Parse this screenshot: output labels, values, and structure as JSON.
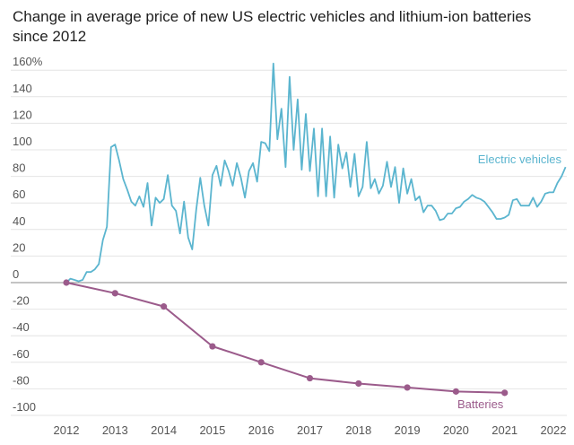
{
  "chart_data": {
    "type": "line",
    "title": "Change in average price of new US electric vehicles and lithium-ion batteries since 2012",
    "xlabel": "",
    "ylabel": "",
    "xlim": [
      2011.75,
      2022.3
    ],
    "ylim": [
      -100,
      165
    ],
    "y_ticks": [
      {
        "value": 160,
        "label": "160%"
      },
      {
        "value": 140,
        "label": "140"
      },
      {
        "value": 120,
        "label": "120"
      },
      {
        "value": 100,
        "label": "100"
      },
      {
        "value": 80,
        "label": "80"
      },
      {
        "value": 60,
        "label": "60"
      },
      {
        "value": 40,
        "label": "40"
      },
      {
        "value": 20,
        "label": "20"
      },
      {
        "value": 0,
        "label": "0"
      },
      {
        "value": -20,
        "label": "-20"
      },
      {
        "value": -40,
        "label": "-40"
      },
      {
        "value": -60,
        "label": "-60"
      },
      {
        "value": -80,
        "label": "-80"
      },
      {
        "value": -100,
        "label": "-100"
      }
    ],
    "x_ticks": [
      {
        "value": 2012,
        "label": "2012"
      },
      {
        "value": 2013,
        "label": "2013"
      },
      {
        "value": 2014,
        "label": "2014"
      },
      {
        "value": 2015,
        "label": "2015"
      },
      {
        "value": 2016,
        "label": "2016"
      },
      {
        "value": 2017,
        "label": "2017"
      },
      {
        "value": 2018,
        "label": "2018"
      },
      {
        "value": 2019,
        "label": "2019"
      },
      {
        "value": 2020,
        "label": "2020"
      },
      {
        "value": 2021,
        "label": "2021"
      },
      {
        "value": 2022,
        "label": "2022"
      }
    ],
    "grid": true,
    "series": [
      {
        "name": "Electric vehicles",
        "color": "#5bb5cf",
        "markers": false,
        "x": [
          2012.0,
          2012.083,
          2012.167,
          2012.25,
          2012.333,
          2012.417,
          2012.5,
          2012.583,
          2012.667,
          2012.75,
          2012.833,
          2012.917,
          2013.0,
          2013.083,
          2013.167,
          2013.25,
          2013.333,
          2013.417,
          2013.5,
          2013.583,
          2013.667,
          2013.75,
          2013.833,
          2013.917,
          2014.0,
          2014.083,
          2014.167,
          2014.25,
          2014.333,
          2014.417,
          2014.5,
          2014.583,
          2014.667,
          2014.75,
          2014.833,
          2014.917,
          2015.0,
          2015.083,
          2015.167,
          2015.25,
          2015.333,
          2015.417,
          2015.5,
          2015.583,
          2015.667,
          2015.75,
          2015.833,
          2015.917,
          2016.0,
          2016.083,
          2016.167,
          2016.25,
          2016.333,
          2016.417,
          2016.5,
          2016.583,
          2016.667,
          2016.75,
          2016.833,
          2016.917,
          2017.0,
          2017.083,
          2017.167,
          2017.25,
          2017.333,
          2017.417,
          2017.5,
          2017.583,
          2017.667,
          2017.75,
          2017.833,
          2017.917,
          2018.0,
          2018.083,
          2018.167,
          2018.25,
          2018.333,
          2018.417,
          2018.5,
          2018.583,
          2018.667,
          2018.75,
          2018.833,
          2018.917,
          2019.0,
          2019.083,
          2019.167,
          2019.25,
          2019.333,
          2019.417,
          2019.5,
          2019.583,
          2019.667,
          2019.75,
          2019.833,
          2019.917,
          2020.0,
          2020.083,
          2020.167,
          2020.25,
          2020.333,
          2020.417,
          2020.5,
          2020.583,
          2020.667,
          2020.75,
          2020.833,
          2020.917,
          2021.0,
          2021.083,
          2021.167,
          2021.25,
          2021.333,
          2021.417,
          2021.5,
          2021.583,
          2021.667,
          2021.75,
          2021.833,
          2021.917,
          2022.0,
          2022.083,
          2022.167,
          2022.25
        ],
        "y": [
          0,
          3,
          2,
          1,
          2,
          8,
          8,
          10,
          14,
          32,
          42,
          102,
          104,
          92,
          78,
          70,
          61,
          58,
          65,
          57,
          75,
          43,
          64,
          60,
          63,
          81,
          58,
          54,
          37,
          61,
          34,
          25,
          55,
          79,
          58,
          43,
          81,
          88,
          73,
          92,
          84,
          73,
          90,
          79,
          64,
          84,
          90,
          76,
          106,
          105,
          99,
          165,
          108,
          131,
          87,
          155,
          100,
          138,
          85,
          127,
          84,
          116,
          65,
          116,
          65,
          110,
          64,
          104,
          86,
          98,
          72,
          97,
          65,
          72,
          106,
          71,
          78,
          67,
          73,
          91,
          72,
          87,
          60,
          86,
          67,
          78,
          62,
          65,
          53,
          58,
          58,
          54,
          47,
          48,
          52,
          52,
          56,
          57,
          61,
          63,
          66,
          64,
          63,
          61,
          57,
          53,
          48,
          48,
          49,
          51,
          62,
          63,
          58,
          58,
          58,
          64,
          57,
          61,
          67,
          68,
          68,
          75,
          80,
          87
        ]
      },
      {
        "name": "Batteries",
        "color": "#9b5b8b",
        "markers": true,
        "x": [
          2012,
          2013,
          2014,
          2015,
          2016,
          2017,
          2018,
          2019,
          2020,
          2021
        ],
        "y": [
          0,
          -8,
          -18,
          -48,
          -60,
          -72,
          -76,
          -79,
          -82,
          -83
        ]
      }
    ]
  }
}
